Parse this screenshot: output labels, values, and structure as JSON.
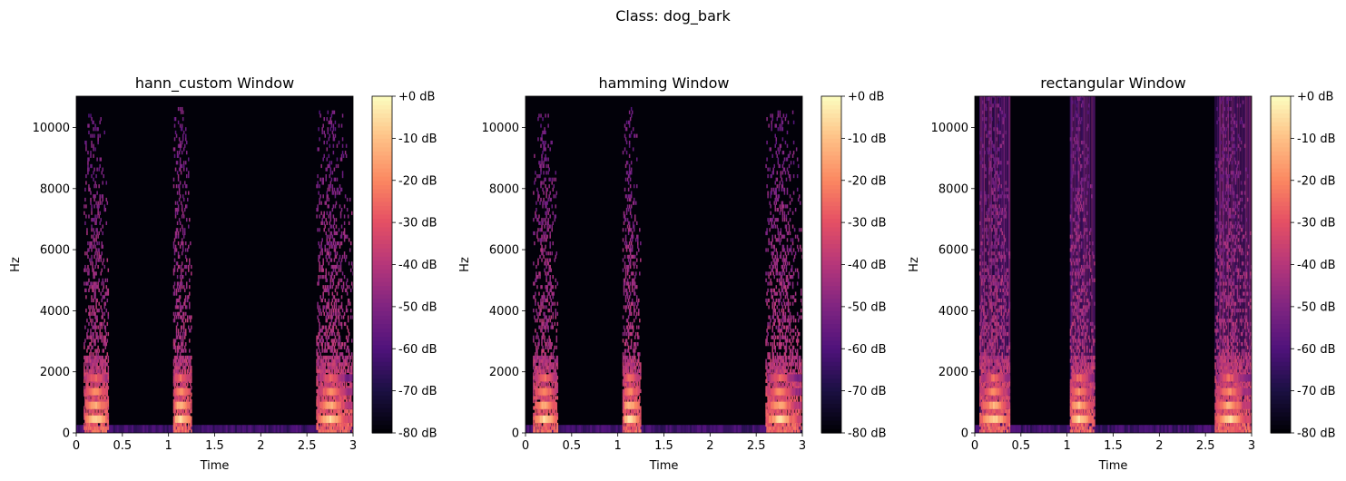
{
  "figure": {
    "suptitle": "Class: dog_bark"
  },
  "chart_data": [
    {
      "type": "heatmap",
      "title": "hann_custom Window",
      "window": "hann_custom",
      "xlabel": "Time",
      "ylabel": "Hz",
      "xlim": [
        0,
        3
      ],
      "ylim": [
        0,
        11025
      ],
      "x_ticks": [
        0,
        0.5,
        1,
        1.5,
        2,
        2.5,
        3
      ],
      "x_tick_labels": [
        "0",
        "0.5",
        "1",
        "1.5",
        "2",
        "2.5",
        "3"
      ],
      "y_ticks": [
        0,
        2000,
        4000,
        6000,
        8000,
        10000
      ],
      "y_tick_labels": [
        "0",
        "2000",
        "4000",
        "6000",
        "8000",
        "10000"
      ],
      "colorbar": {
        "range_db": [
          -80,
          0
        ],
        "ticks": [
          0,
          -10,
          -20,
          -30,
          -40,
          -50,
          -60,
          -70,
          -80
        ],
        "tick_labels": [
          "+0 dB",
          "-10 dB",
          "-20 dB",
          "-30 dB",
          "-40 dB",
          "-50 dB",
          "-60 dB",
          "-70 dB",
          "-80 dB"
        ],
        "colormap": "magma"
      },
      "events": [
        {
          "start_s": 0.08,
          "end_s": 0.35,
          "peak_s": 0.2,
          "max_freq_hz": 10400
        },
        {
          "start_s": 1.05,
          "end_s": 1.25,
          "peak_s": 1.12,
          "max_freq_hz": 10600
        },
        {
          "start_s": 2.6,
          "end_s": 3.0,
          "peak_s": 2.75,
          "max_freq_hz": 10500
        }
      ],
      "leakage": "low"
    },
    {
      "type": "heatmap",
      "title": "hamming Window",
      "window": "hamming",
      "xlabel": "Time",
      "ylabel": "Hz",
      "xlim": [
        0,
        3
      ],
      "ylim": [
        0,
        11025
      ],
      "x_ticks": [
        0,
        0.5,
        1,
        1.5,
        2,
        2.5,
        3
      ],
      "x_tick_labels": [
        "0",
        "0.5",
        "1",
        "1.5",
        "2",
        "2.5",
        "3"
      ],
      "y_ticks": [
        0,
        2000,
        4000,
        6000,
        8000,
        10000
      ],
      "y_tick_labels": [
        "0",
        "2000",
        "4000",
        "6000",
        "8000",
        "10000"
      ],
      "colorbar": {
        "range_db": [
          -80,
          0
        ],
        "ticks": [
          0,
          -10,
          -20,
          -30,
          -40,
          -50,
          -60,
          -70,
          -80
        ],
        "tick_labels": [
          "+0 dB",
          "-10 dB",
          "-20 dB",
          "-30 dB",
          "-40 dB",
          "-50 dB",
          "-60 dB",
          "-70 dB",
          "-80 dB"
        ],
        "colormap": "magma"
      },
      "events": [
        {
          "start_s": 0.08,
          "end_s": 0.35,
          "peak_s": 0.2,
          "max_freq_hz": 10400
        },
        {
          "start_s": 1.05,
          "end_s": 1.25,
          "peak_s": 1.12,
          "max_freq_hz": 10600
        },
        {
          "start_s": 2.6,
          "end_s": 3.0,
          "peak_s": 2.75,
          "max_freq_hz": 10500
        }
      ],
      "leakage": "low"
    },
    {
      "type": "heatmap",
      "title": "rectangular Window",
      "window": "rectangular",
      "xlabel": "Time",
      "ylabel": "Hz",
      "xlim": [
        0,
        3
      ],
      "ylim": [
        0,
        11025
      ],
      "x_ticks": [
        0,
        0.5,
        1,
        1.5,
        2,
        2.5,
        3
      ],
      "x_tick_labels": [
        "0",
        "0.5",
        "1",
        "1.5",
        "2",
        "2.5",
        "3"
      ],
      "y_ticks": [
        0,
        2000,
        4000,
        6000,
        8000,
        10000
      ],
      "y_tick_labels": [
        "0",
        "2000",
        "4000",
        "6000",
        "8000",
        "10000"
      ],
      "colorbar": {
        "range_db": [
          -80,
          0
        ],
        "ticks": [
          0,
          -10,
          -20,
          -30,
          -40,
          -50,
          -60,
          -70,
          -80
        ],
        "tick_labels": [
          "+0 dB",
          "-10 dB",
          "-20 dB",
          "-30 dB",
          "-40 dB",
          "-50 dB",
          "-60 dB",
          "-70 dB",
          "-80 dB"
        ],
        "colormap": "magma"
      },
      "events": [
        {
          "start_s": 0.05,
          "end_s": 0.38,
          "peak_s": 0.2,
          "max_freq_hz": 11025
        },
        {
          "start_s": 1.03,
          "end_s": 1.3,
          "peak_s": 1.12,
          "max_freq_hz": 11025
        },
        {
          "start_s": 2.6,
          "end_s": 3.0,
          "peak_s": 2.75,
          "max_freq_hz": 11025
        }
      ],
      "leakage": "high"
    }
  ]
}
